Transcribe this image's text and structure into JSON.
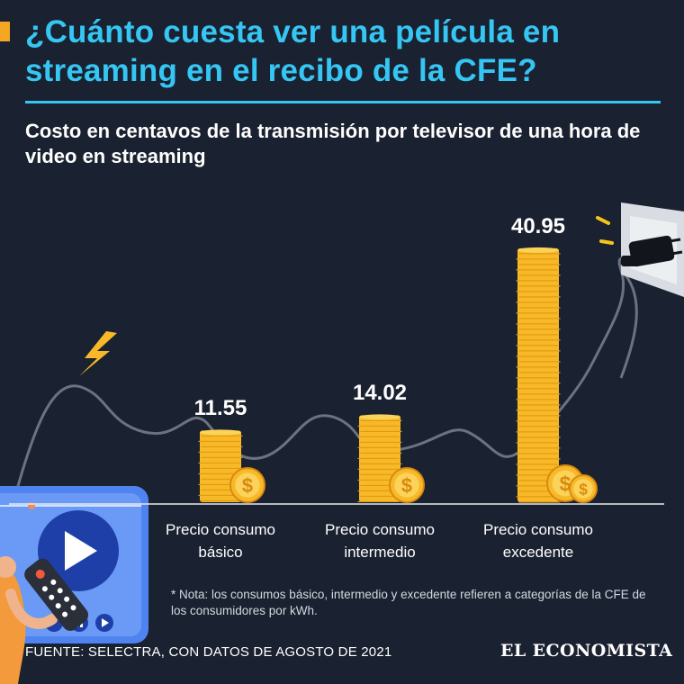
{
  "header": {
    "title": "¿Cuánto cuesta ver una película en streaming en el recibo de la CFE?",
    "subtitle": "Costo en centavos de la transmisión por televisor de una hora de video en streaming"
  },
  "chart_data": {
    "type": "bar",
    "categories": [
      "Precio consumo básico",
      "Precio consumo intermedio",
      "Precio consumo excedente"
    ],
    "category_lines": [
      [
        "Precio consumo",
        "básico"
      ],
      [
        "Precio consumo",
        "intermedio"
      ],
      [
        "Precio consumo",
        "excedente"
      ]
    ],
    "values": [
      11.55,
      14.02,
      40.95
    ],
    "value_labels": [
      "11.55",
      "14.02",
      "40.95"
    ],
    "xlabel": "",
    "ylabel": "",
    "ylim": [
      0,
      45
    ],
    "grid": false,
    "legend": "none",
    "bar_style": "stacked coins"
  },
  "footer": {
    "note": "* Nota: los consumos básico, intermedio y excedente refieren a categorías de la CFE de los consumidores por kWh.",
    "source": "FUENTE: SELECTRA, CON DATOS DE AGOSTO DE 2021",
    "brand": "EL ECONOMISTA"
  },
  "icons": {
    "lightning": "lightning-bolt-icon",
    "plug": "power-plug-icon",
    "player": "play-button-icon",
    "remote": "remote-control-icon"
  },
  "colors": {
    "background": "#1a2130",
    "title": "#35c6f4",
    "accent": "#f5a623",
    "coin": "#f7b928",
    "text": "#ffffff"
  }
}
